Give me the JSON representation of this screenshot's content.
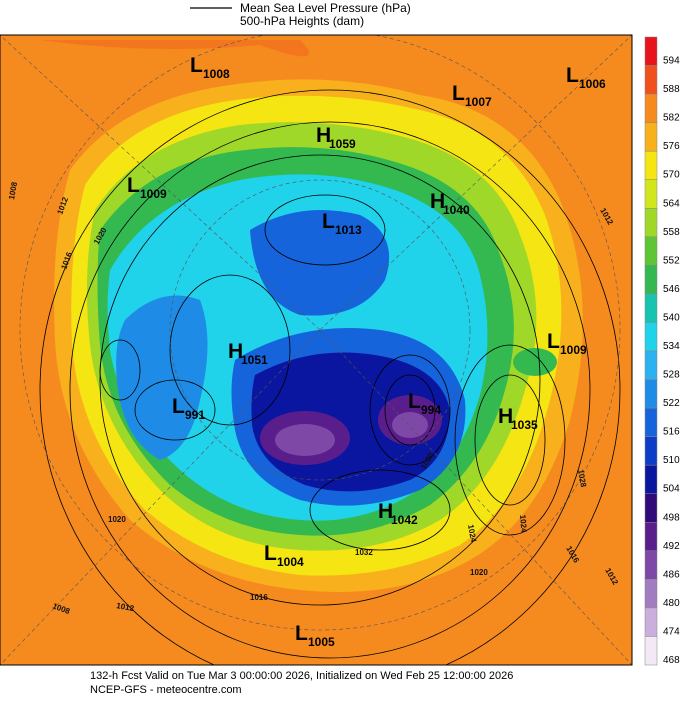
{
  "legend": {
    "items": [
      "Mean Sea Level Pressure (hPa)",
      "500-hPa Heights (dam)"
    ]
  },
  "colorbar": {
    "levels": [
      594,
      588,
      582,
      576,
      570,
      564,
      558,
      552,
      546,
      540,
      534,
      528,
      522,
      516,
      510,
      504,
      498,
      492,
      486,
      480,
      474,
      468
    ],
    "colors": [
      "#e8141c",
      "#f0501e",
      "#f58a1f",
      "#f8b01c",
      "#f5e512",
      "#d2e61e",
      "#a0d82a",
      "#5ec634",
      "#34b850",
      "#18c4b0",
      "#20d2ea",
      "#2cb2f0",
      "#1e8ce6",
      "#1664dc",
      "#0c3cc8",
      "#0a16a0",
      "#300a78",
      "#5a1e8c",
      "#7e48a6",
      "#a27cc0",
      "#caaedc",
      "#f2e8f6"
    ]
  },
  "centers": [
    {
      "letter": "L",
      "value": 1008
    },
    {
      "letter": "L",
      "value": 1007
    },
    {
      "letter": "L",
      "value": 1006
    },
    {
      "letter": "H",
      "value": 1059
    },
    {
      "letter": "L",
      "value": 1009
    },
    {
      "letter": "H",
      "value": 1040
    },
    {
      "letter": "L",
      "value": 1013
    },
    {
      "letter": "H",
      "value": 1051
    },
    {
      "letter": "L",
      "value": 1009
    },
    {
      "letter": "L",
      "value": 991
    },
    {
      "letter": "L",
      "value": 994
    },
    {
      "letter": "H",
      "value": 1035
    },
    {
      "letter": "H",
      "value": 1042
    },
    {
      "letter": "L",
      "value": 1004
    },
    {
      "letter": "L",
      "value": 1005
    }
  ],
  "contour_labels": [
    1008,
    1012,
    1016,
    1020,
    1012,
    1028,
    1024,
    1016,
    1012,
    1020,
    1024,
    1020,
    1012,
    1008,
    1016,
    1032,
    1020
  ],
  "footer": {
    "line1": "132-h Fcst Valid on Tue Mar  3 00:00:00 2026, Initialized on Wed Feb 25 12:00:00 2026",
    "line2": "NCEP-GFS  - meteocentre.com"
  }
}
